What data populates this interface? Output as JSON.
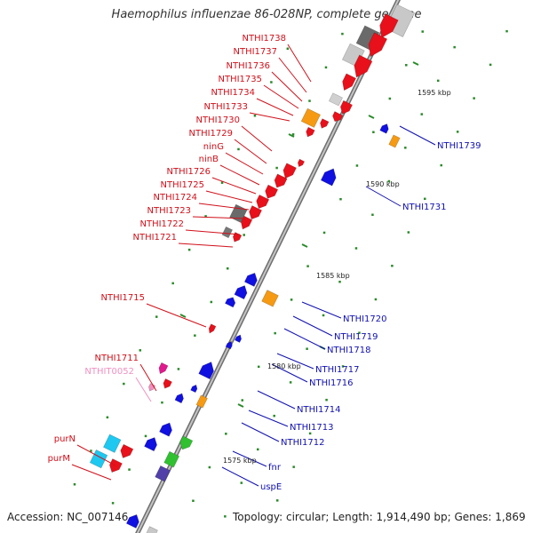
{
  "title": "Haemophilus influenzae 86-028NP, complete genome",
  "footer": {
    "accession": "Accession: NC_007146",
    "topology": "Topology: circular; Length: 1,914,490 bp; Genes: 1,869"
  },
  "colors": {
    "backbone": "#8c8c8c",
    "red": "#e8101a",
    "blue": "#1010e0",
    "orange": "#f59a12",
    "gray": "#8a8a8a",
    "light_gray": "#c8c8c8",
    "cyan": "#1ec8f0",
    "green": "#30c030",
    "purple": "#5040a8",
    "pink": "#f090c0",
    "magenta": "#e01a8c",
    "tick_green": "#2a8a2a",
    "label_red": "#d0101a",
    "label_blue": "#1010b0"
  },
  "kbp_ticks": [
    "1575 kbp",
    "1580 kbp",
    "1585 kbp",
    "1590 kbp",
    "1595 kbp"
  ],
  "left_labels": [
    "NTHI1738",
    "NTHI1737",
    "NTHI1736",
    "NTHI1735",
    "NTHI1734",
    "NTHI1733",
    "NTHI1730",
    "NTHI1729",
    "ninG",
    "ninB",
    "NTHI1726",
    "NTHI1725",
    "NTHI1724",
    "NTHI1723",
    "NTHI1722",
    "NTHI1721",
    "NTHI1715",
    "NTHI1711",
    "NTHIT0052",
    "purN",
    "purM"
  ],
  "right_labels": [
    "NTHI1739",
    "NTHI1731",
    "NTHI1720",
    "NTHI1719",
    "NTHI1718",
    "NTHI1717",
    "NTHI1716",
    "NTHI1714",
    "NTHI1713",
    "NTHI1712",
    "fnr",
    "uspE"
  ]
}
